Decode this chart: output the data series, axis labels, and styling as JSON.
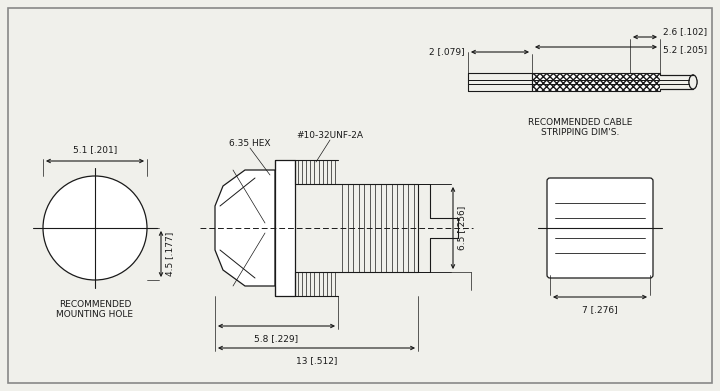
{
  "bg_color": "#f0f0eb",
  "line_color": "#1a1a1a",
  "fs": 6.5,
  "cable_label": "RECOMMENDED CABLE\nSTRIPPING DIM'S.",
  "cable_dim1": "2 [.079]",
  "cable_dim2": "2.6 [.102]",
  "cable_dim3": "5.2 [.205]",
  "mh_label": "RECOMMENDED\nMOUNTING HOLE",
  "mh_dim_w": "5.1 [.201]",
  "mh_dim_h": "4.5 [.177]",
  "conn_label1": "6.35 HEX",
  "conn_label2": "#10-32UNF-2A",
  "conn_dim_58": "5.8 [.229]",
  "conn_dim_13": "13 [.512]",
  "conn_dim_65": "6.5 [.256]",
  "conn_dim_7": "7 [.276]"
}
